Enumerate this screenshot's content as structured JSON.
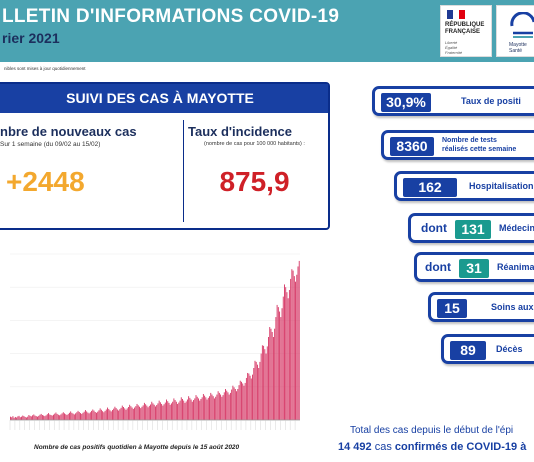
{
  "header": {
    "title": "LLETIN D'INFORMATIONS COVID-19",
    "date": "rier 2021",
    "logo_rf_lines": [
      "RÉPUBLIQUE",
      "FRANÇAISE"
    ],
    "logo_rf_motto": [
      "Liberté",
      "Égalité",
      "Fraternité"
    ],
    "logo_ars_sub": [
      "Mayotte",
      "Santé"
    ]
  },
  "update_note": "nibles sont mises à jour quotidiennement",
  "suivi": {
    "title": "SUIVI DES CAS À MAYOTTE",
    "new_cases_title": "nbre de nouveaux cas",
    "new_cases_sub": "Sur 1 semaine (du 09/02 au 15/02)",
    "new_cases_value": "+2448",
    "incidence_title": "Taux d'incidence",
    "incidence_sub": "(nombre de cas pour 100 000 habitants) :",
    "incidence_value": "875,9"
  },
  "stats": {
    "positivity_value": "30,9%",
    "positivity_label": "Taux de positi",
    "tests_value": "8360",
    "tests_label_1": "Nombre de tests",
    "tests_label_2": "réalisés cette semaine",
    "hosp_value": "162",
    "hosp_label": "Hospitalisation",
    "med_prefix": "dont",
    "med_value": "131",
    "med_label": "Médecin",
    "rea_prefix": "dont",
    "rea_value": "31",
    "rea_label": "Réanima",
    "soins_value": "15",
    "soins_label": "Soins aux",
    "deces_value": "89",
    "deces_label": "Décès"
  },
  "totals": {
    "line1": "Total des cas depuis le début de l'épi",
    "value": "14 492",
    "line2_rest": " cas ",
    "line2_bold": "confirmés de COVID-19 à"
  },
  "chart_caption": "Nombre de cas positifs quotidien à Mayotte depuis le 15 août 2020",
  "colors": {
    "header_bg": "#4ba3b2",
    "navy": "#1840a3",
    "orange": "#f3a82e",
    "red": "#cf2027",
    "teal": "#1a9a8f",
    "bars": "#d63866"
  },
  "chart_data": {
    "type": "bar",
    "title": "",
    "xlabel": "",
    "ylabel": "",
    "ylim": [
      0,
      600
    ],
    "series": [
      {
        "values": [
          12,
          10,
          14,
          8,
          11,
          9,
          13,
          15,
          10,
          12,
          16,
          14,
          11,
          9,
          12,
          18,
          15,
          13,
          17,
          20,
          16,
          14,
          12,
          15,
          19,
          22,
          18,
          16,
          14,
          17,
          21,
          25,
          20,
          18,
          16,
          19,
          23,
          27,
          22,
          19,
          17,
          20,
          24,
          28,
          24,
          21,
          18,
          22,
          26,
          31,
          26,
          23,
          20,
          24,
          28,
          33,
          29,
          25,
          22,
          26,
          30,
          36,
          31,
          27,
          24,
          28,
          33,
          38,
          34,
          29,
          26,
          30,
          35,
          42,
          37,
          32,
          28,
          33,
          38,
          45,
          40,
          35,
          31,
          36,
          41,
          48,
          43,
          38,
          34,
          39,
          44,
          52,
          47,
          42,
          37,
          42,
          47,
          55,
          50,
          45,
          40,
          45,
          50,
          58,
          53,
          48,
          43,
          48,
          53,
          62,
          57,
          52,
          46,
          51,
          56,
          66,
          60,
          55,
          49,
          54,
          60,
          70,
          64,
          58,
          52,
          57,
          63,
          74,
          68,
          62,
          55,
          60,
          66,
          78,
          72,
          66,
          58,
          63,
          70,
          82,
          76,
          70,
          62,
          67,
          74,
          86,
          80,
          74,
          66,
          72,
          78,
          90,
          84,
          78,
          70,
          76,
          82,
          94,
          88,
          82,
          74,
          80,
          86,
          98,
          92,
          86,
          78,
          84,
          92,
          104,
          98,
          92,
          84,
          90,
          100,
          112,
          106,
          100,
          92,
          98,
          110,
          124,
          118,
          112,
          104,
          112,
          126,
          142,
          138,
          132,
          124,
          134,
          152,
          170,
          168,
          160,
          150,
          164,
          188,
          214,
          210,
          200,
          188,
          210,
          240,
          270,
          268,
          256,
          240,
          266,
          300,
          336,
          330,
          318,
          300,
          330,
          372,
          416,
          408,
          392,
          372,
          404,
          446,
          490,
          480,
          462,
          440,
          470,
          510,
          545,
          540,
          520,
          500,
          525,
          555,
          575
        ]
      }
    ]
  }
}
